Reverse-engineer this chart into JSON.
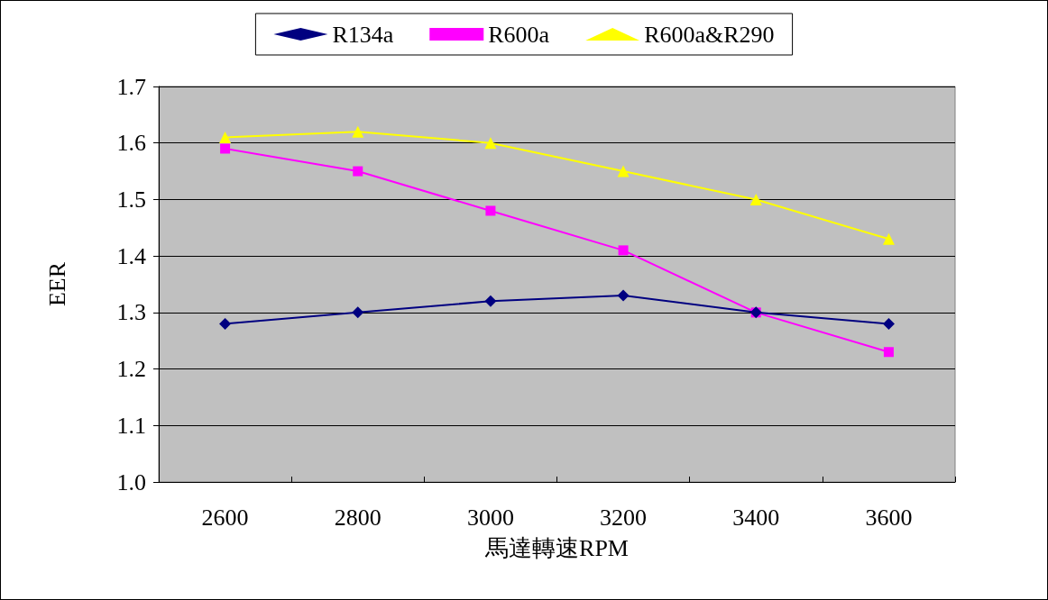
{
  "chart_data": {
    "type": "line",
    "xlabel": "馬達轉速RPM",
    "ylabel": "EER",
    "categories": [
      "2600",
      "2800",
      "3000",
      "3200",
      "3400",
      "3600"
    ],
    "series": [
      {
        "name": "R134a",
        "color": "#000080",
        "marker": "diamond",
        "values": [
          1.28,
          1.3,
          1.32,
          1.33,
          1.3,
          1.28
        ]
      },
      {
        "name": "R600a",
        "color": "#ff00ff",
        "marker": "square",
        "values": [
          1.59,
          1.55,
          1.48,
          1.41,
          1.3,
          1.23
        ]
      },
      {
        "name": "R600a&R290",
        "color": "#ffff00",
        "marker": "triangle",
        "values": [
          1.61,
          1.62,
          1.6,
          1.55,
          1.5,
          1.43
        ]
      }
    ],
    "ylim": [
      1.0,
      1.7
    ],
    "yticks": [
      {
        "value": 1.0,
        "label": "1.0"
      },
      1.1,
      1.2,
      1.3,
      1.4,
      1.5,
      1.6,
      1.7
    ],
    "grid": "y",
    "legend": "top"
  }
}
